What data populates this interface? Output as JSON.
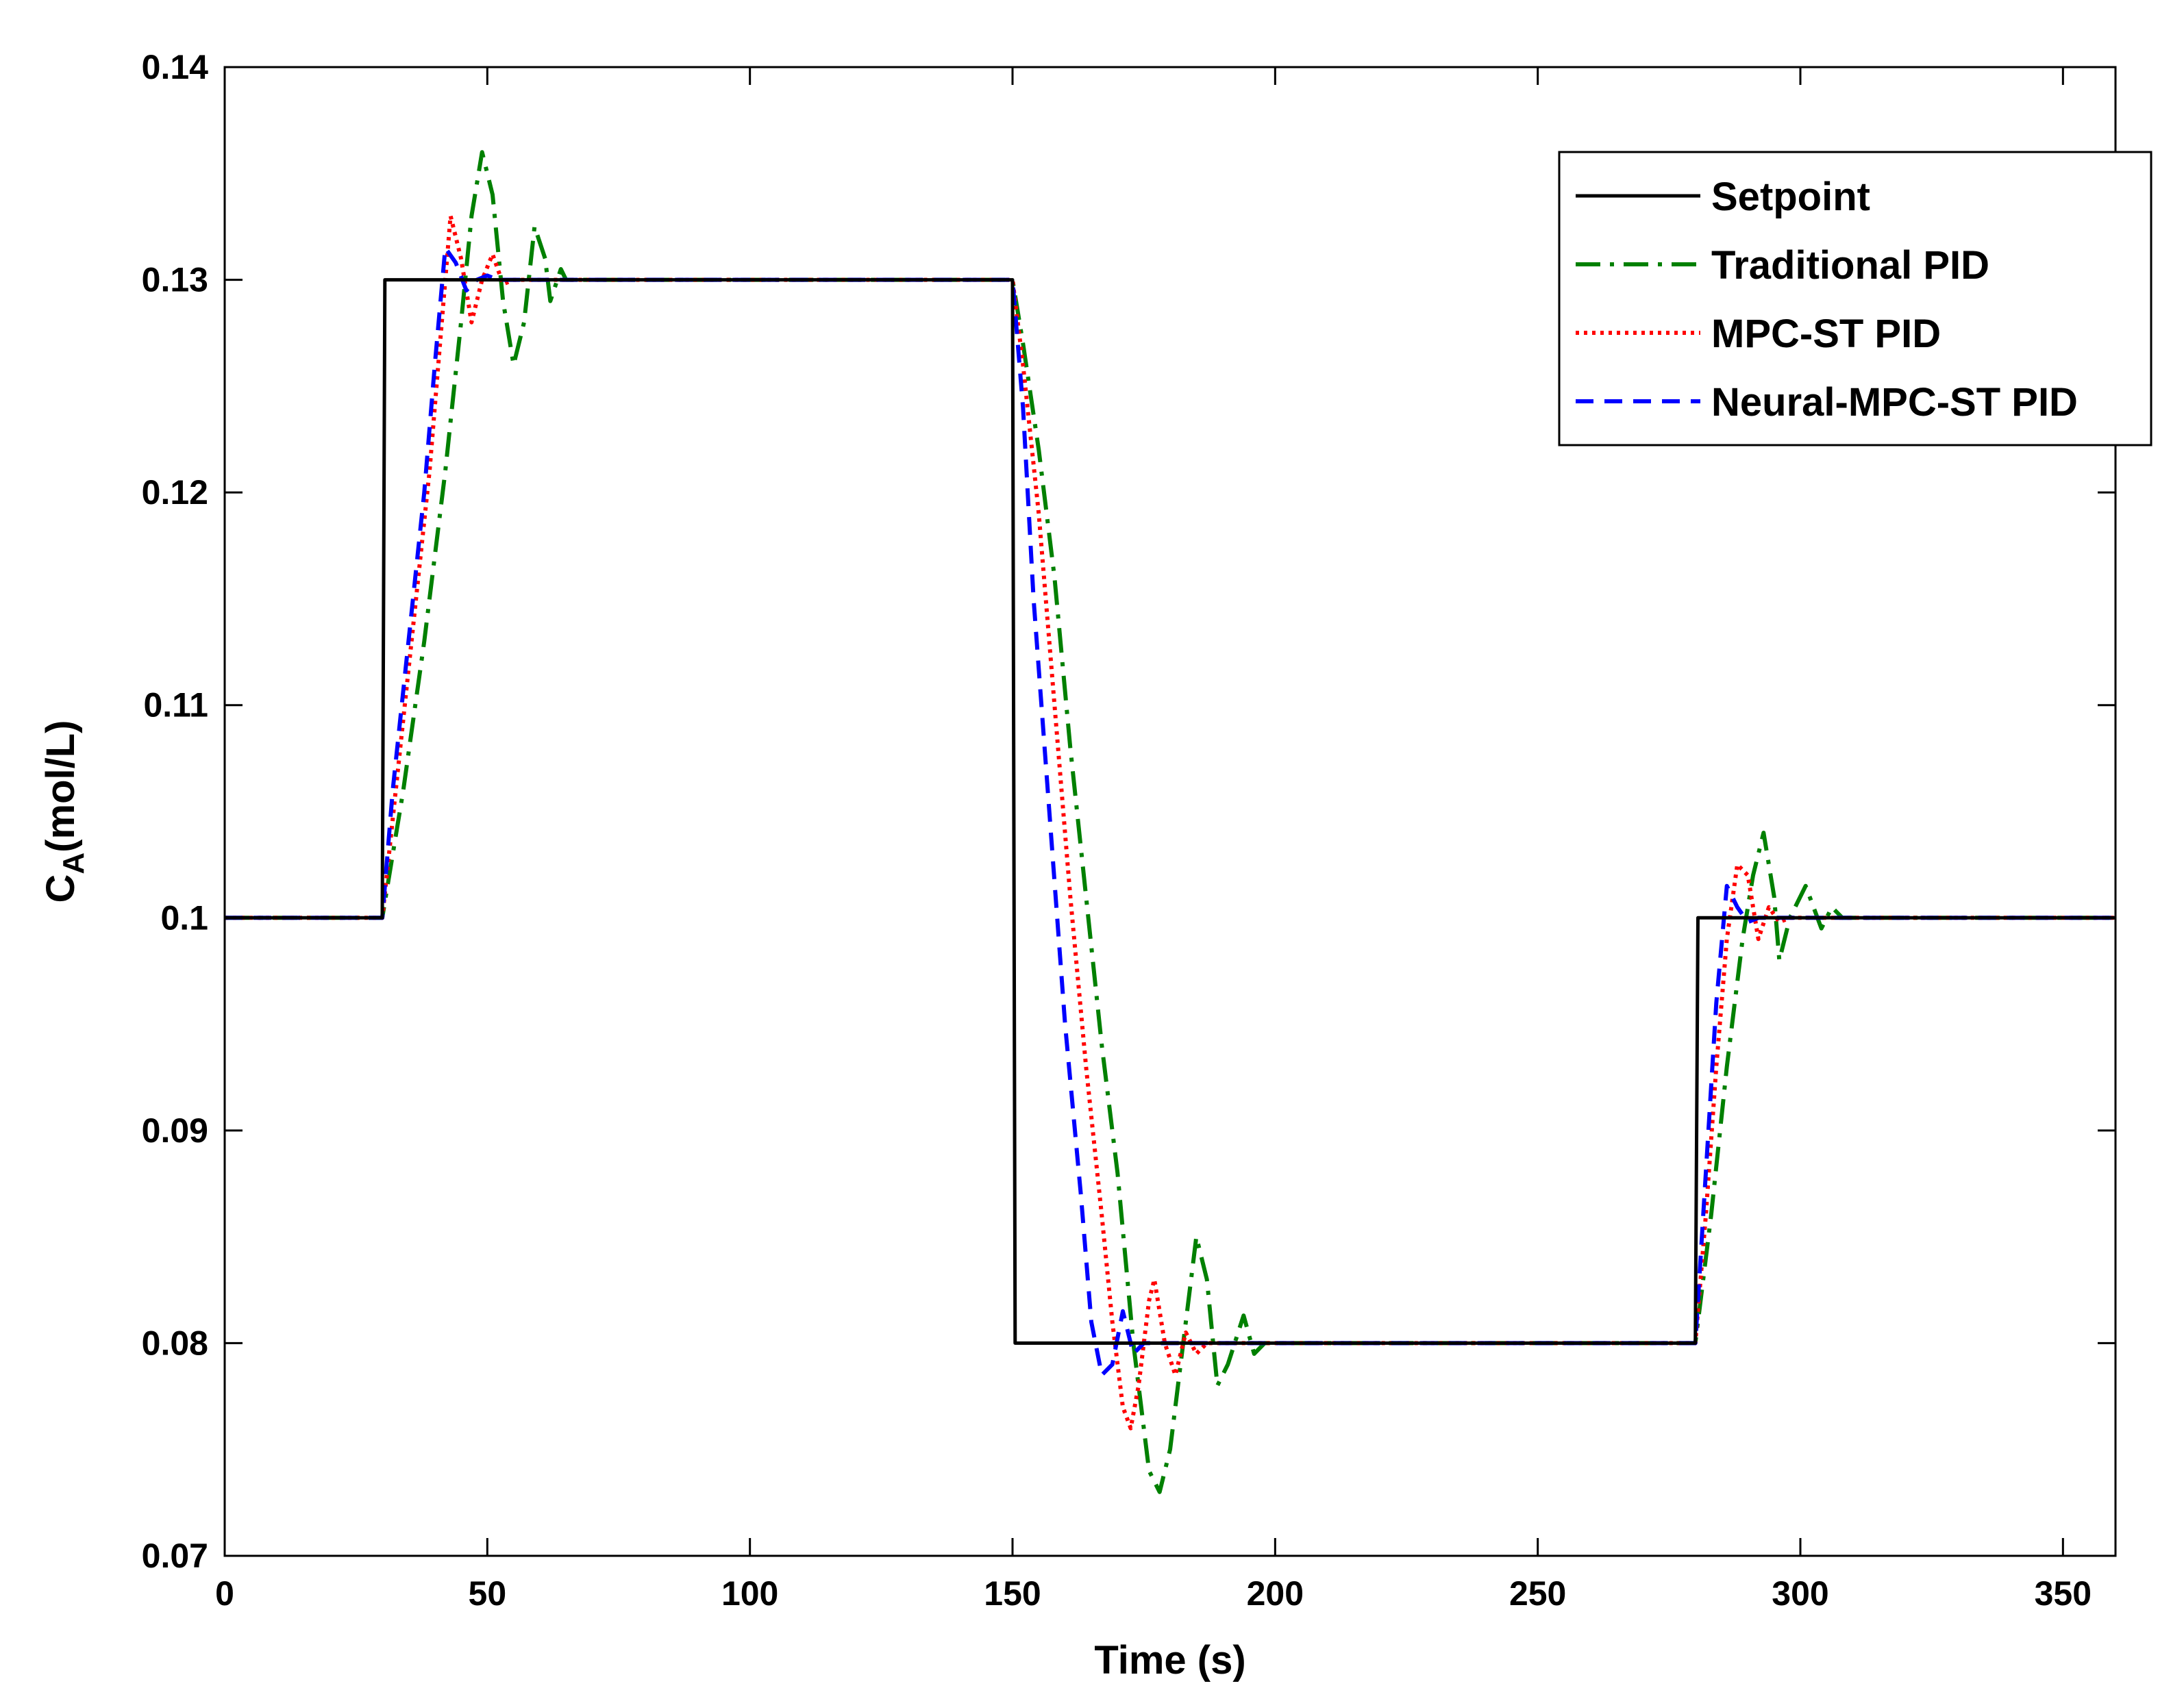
{
  "chart_data": {
    "type": "line",
    "xlabel": "Time (s)",
    "ylabel_main": "C",
    "ylabel_sub": "A",
    "ylabel_unit": "(mol/L)",
    "xlim": [
      0,
      360
    ],
    "ylim": [
      0.07,
      0.14
    ],
    "xticks": [
      0,
      50,
      100,
      150,
      200,
      250,
      300,
      350
    ],
    "xtick_labels": [
      "0",
      "50",
      "100",
      "150",
      "200",
      "250",
      "300",
      "350"
    ],
    "yticks": [
      0.07,
      0.08,
      0.09,
      0.1,
      0.11,
      0.12,
      0.13,
      0.14
    ],
    "ytick_labels": [
      "0.07",
      "0.08",
      "0.09",
      "0.1",
      "0.11",
      "0.12",
      "0.13",
      "0.14"
    ],
    "grid": false,
    "legend_position": "top-right",
    "series": [
      {
        "name": "Setpoint",
        "color": "#000000",
        "dash": "solid",
        "points": [
          [
            0,
            0.1
          ],
          [
            30,
            0.1
          ],
          [
            30.5,
            0.13
          ],
          [
            150,
            0.13
          ],
          [
            150.5,
            0.08
          ],
          [
            280,
            0.08
          ],
          [
            280.5,
            0.1
          ],
          [
            360,
            0.1
          ]
        ]
      },
      {
        "name": "Traditional PID",
        "color": "#008000",
        "dash": "dashdot",
        "points": [
          [
            0,
            0.1
          ],
          [
            30,
            0.1
          ],
          [
            34,
            0.106
          ],
          [
            38,
            0.113
          ],
          [
            42,
            0.121
          ],
          [
            45,
            0.128
          ],
          [
            47,
            0.133
          ],
          [
            49,
            0.136
          ],
          [
            51,
            0.134
          ],
          [
            53,
            0.129
          ],
          [
            55,
            0.126
          ],
          [
            57,
            0.128
          ],
          [
            59,
            0.1325
          ],
          [
            61,
            0.131
          ],
          [
            62,
            0.129
          ],
          [
            64,
            0.1305
          ],
          [
            65,
            0.13
          ],
          [
            150,
            0.13
          ],
          [
            152,
            0.127
          ],
          [
            155,
            0.122
          ],
          [
            158,
            0.116
          ],
          [
            161,
            0.108
          ],
          [
            164,
            0.101
          ],
          [
            167,
            0.094
          ],
          [
            170,
            0.088
          ],
          [
            173,
            0.08
          ],
          [
            176,
            0.074
          ],
          [
            178,
            0.073
          ],
          [
            180,
            0.075
          ],
          [
            182,
            0.079
          ],
          [
            185,
            0.085
          ],
          [
            187,
            0.083
          ],
          [
            189,
            0.078
          ],
          [
            191,
            0.079
          ],
          [
            194,
            0.0813
          ],
          [
            196,
            0.0795
          ],
          [
            198,
            0.08
          ],
          [
            280,
            0.08
          ],
          [
            283,
            0.086
          ],
          [
            286,
            0.093
          ],
          [
            289,
            0.099
          ],
          [
            291,
            0.102
          ],
          [
            293,
            0.104
          ],
          [
            295,
            0.101
          ],
          [
            296,
            0.098
          ],
          [
            298,
            0.1
          ],
          [
            301,
            0.1015
          ],
          [
            304,
            0.0995
          ],
          [
            306,
            0.1005
          ],
          [
            308,
            0.1
          ],
          [
            360,
            0.1
          ]
        ]
      },
      {
        "name": "MPC-ST PID",
        "color": "#ff0000",
        "dash": "dotted",
        "points": [
          [
            0,
            0.1
          ],
          [
            30,
            0.1
          ],
          [
            33,
            0.107
          ],
          [
            36,
            0.114
          ],
          [
            39,
            0.121
          ],
          [
            41,
            0.127
          ],
          [
            43,
            0.133
          ],
          [
            45,
            0.131
          ],
          [
            47,
            0.128
          ],
          [
            49,
            0.13
          ],
          [
            51,
            0.1312
          ],
          [
            53,
            0.1298
          ],
          [
            55,
            0.13
          ],
          [
            150,
            0.13
          ],
          [
            152,
            0.126
          ],
          [
            155,
            0.119
          ],
          [
            158,
            0.11
          ],
          [
            161,
            0.101
          ],
          [
            164,
            0.093
          ],
          [
            167,
            0.086
          ],
          [
            169,
            0.081
          ],
          [
            171,
            0.077
          ],
          [
            172.5,
            0.076
          ],
          [
            174,
            0.078
          ],
          [
            176,
            0.082
          ],
          [
            177,
            0.083
          ],
          [
            179,
            0.08
          ],
          [
            181,
            0.0785
          ],
          [
            183,
            0.0805
          ],
          [
            185,
            0.0795
          ],
          [
            187,
            0.08
          ],
          [
            280,
            0.08
          ],
          [
            282,
            0.086
          ],
          [
            284,
            0.093
          ],
          [
            286,
            0.099
          ],
          [
            288,
            0.1025
          ],
          [
            290,
            0.102
          ],
          [
            292,
            0.099
          ],
          [
            294,
            0.1005
          ],
          [
            296,
            0.0998
          ],
          [
            298,
            0.1
          ],
          [
            360,
            0.1
          ]
        ]
      },
      {
        "name": "Neural-MPC-ST PID",
        "color": "#0000ff",
        "dash": "dashed",
        "points": [
          [
            0,
            0.1
          ],
          [
            30,
            0.1
          ],
          [
            32,
            0.106
          ],
          [
            35,
            0.113
          ],
          [
            38,
            0.12
          ],
          [
            40,
            0.126
          ],
          [
            42,
            0.1315
          ],
          [
            44,
            0.1308
          ],
          [
            46,
            0.1295
          ],
          [
            48,
            0.13
          ],
          [
            50,
            0.1302
          ],
          [
            52,
            0.13
          ],
          [
            150,
            0.13
          ],
          [
            152,
            0.124
          ],
          [
            154,
            0.115
          ],
          [
            157,
            0.105
          ],
          [
            160,
            0.095
          ],
          [
            163,
            0.087
          ],
          [
            165,
            0.081
          ],
          [
            167,
            0.0785
          ],
          [
            169,
            0.079
          ],
          [
            171,
            0.0815
          ],
          [
            173,
            0.0795
          ],
          [
            175,
            0.08
          ],
          [
            280,
            0.08
          ],
          [
            282,
            0.088
          ],
          [
            284,
            0.096
          ],
          [
            286,
            0.1015
          ],
          [
            288,
            0.1005
          ],
          [
            290,
            0.0998
          ],
          [
            292,
            0.1
          ],
          [
            360,
            0.1
          ]
        ]
      }
    ]
  }
}
